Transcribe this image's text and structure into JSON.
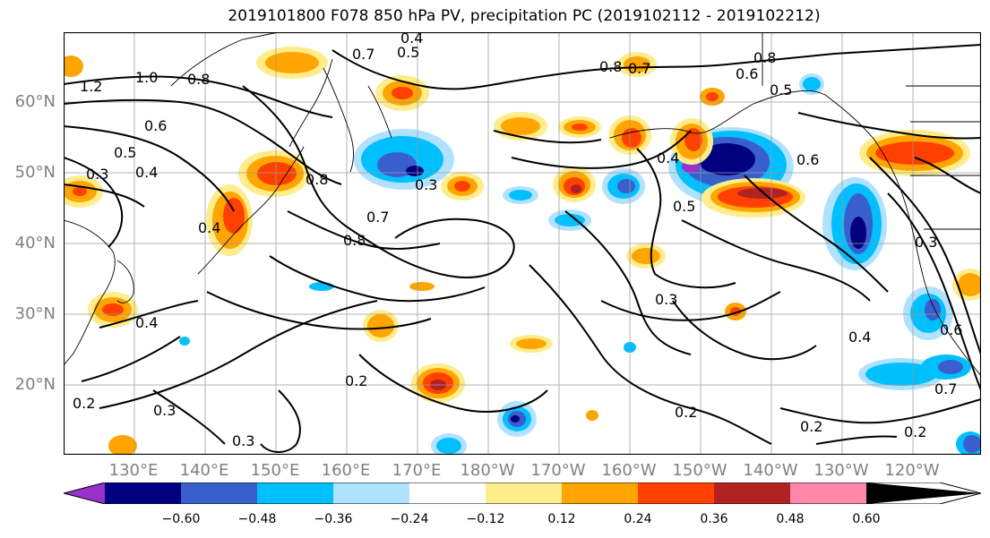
{
  "title": "2019101800 F078 850 hPa PV, precipitation PC (2019102112 - 2019102212)",
  "lat_labels": [
    "60°N",
    "50°N",
    "40°N",
    "30°N",
    "20°N"
  ],
  "lon_labels": [
    "130°E",
    "140°E",
    "150°E",
    "160°E",
    "170°E",
    "180°W",
    "170°W",
    "160°W",
    "150°W",
    "140°W",
    "130°W",
    "120°W"
  ],
  "colorbar": {
    "ticks": [
      "−0.60",
      "−0.48",
      "−0.36",
      "−0.24",
      "−0.12",
      "0.12",
      "0.24",
      "0.36",
      "0.48",
      "0.60"
    ],
    "colors": [
      "#9932cc",
      "#000080",
      "#3a5fcd",
      "#00bfff",
      "#b0e2ff",
      "#ffffff",
      "#ffec8b",
      "#ffa500",
      "#ff4000",
      "#b22222",
      "#ff88aa"
    ]
  },
  "contour_labels": [
    "1.2",
    "1.0",
    "0.8",
    "0.6",
    "0.5",
    "0.4",
    "0.4",
    "0.4",
    "0.3",
    "0.3",
    "0.3",
    "0.3",
    "0.2",
    "0.2",
    "0.2",
    "0.2",
    "0.8",
    "0.7",
    "0.8",
    "0.5",
    "0.4",
    "0.7",
    "0.8",
    "0.6",
    "0.5",
    "0.7",
    "0.8",
    "0.6",
    "0.4",
    "0.5",
    "0.3",
    "0.4",
    "0.2",
    "0.7",
    "0.3",
    "0.6"
  ]
}
